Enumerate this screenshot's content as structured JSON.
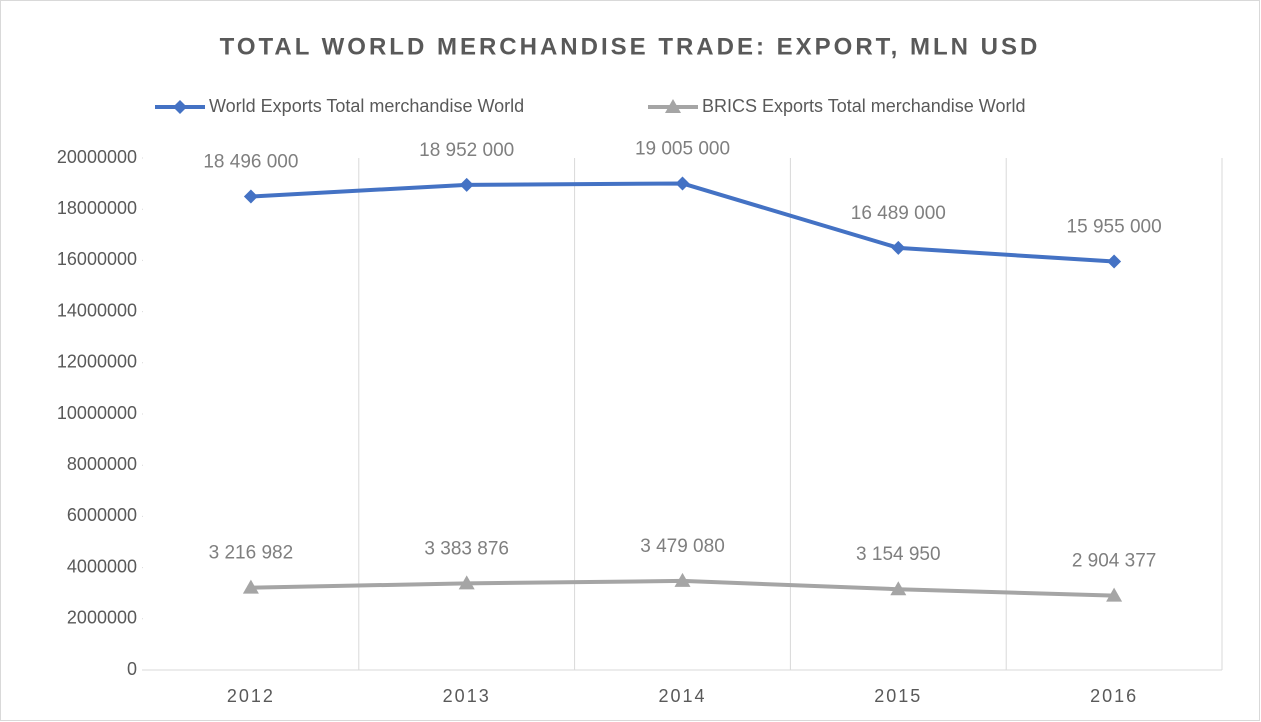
{
  "chart_data": {
    "type": "line",
    "title": "TOTAL WORLD MERCHANDISE TRADE: EXPORT, MLN USD",
    "categories": [
      "2012",
      "2013",
      "2014",
      "2015",
      "2016"
    ],
    "series": [
      {
        "name": "World Exports Total merchandise World",
        "color": "#4472c4",
        "marker": "diamond",
        "values": [
          18496000,
          18952000,
          19005000,
          16489000,
          15955000
        ],
        "value_labels": [
          "18 496 000",
          "18 952 000",
          "19 005 000",
          "16 489 000",
          "15 955 000"
        ]
      },
      {
        "name": "BRICS Exports Total merchandise World",
        "color": "#a5a5a5",
        "marker": "triangle",
        "values": [
          3216982,
          3383876,
          3479080,
          3154950,
          2904377
        ],
        "value_labels": [
          "3 216 982",
          "3 383 876",
          "3 479 080",
          "3 154 950",
          "2 904 377"
        ]
      }
    ],
    "ylim": [
      0,
      20000000
    ],
    "yticks": [
      0,
      2000000,
      4000000,
      6000000,
      8000000,
      10000000,
      12000000,
      14000000,
      16000000,
      18000000,
      20000000
    ],
    "xgrid": true,
    "legend": "top"
  }
}
